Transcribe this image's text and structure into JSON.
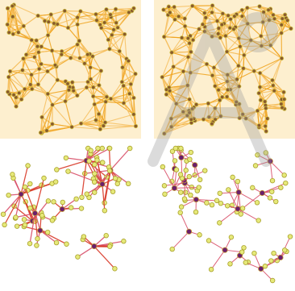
{
  "figure": {
    "panels": [
      {
        "id": "top-left",
        "style": "dense-mesh",
        "seed": 11,
        "nodes": 130,
        "k": 7
      },
      {
        "id": "top-right",
        "style": "clustered-mesh",
        "seed": 23,
        "nodes": 150,
        "k": 7
      },
      {
        "id": "bottom-left",
        "style": "hub-clusters",
        "seed": 37
      },
      {
        "id": "bottom-right",
        "style": "sparse-stars",
        "seed": 53
      }
    ],
    "colors": {
      "background": "#ffffff",
      "mesh_fill": "#f7c66b",
      "mesh_edge": "#f0a31c",
      "mesh_edge_light": "#f6c060",
      "node_fill": "#8a5a2b",
      "node_ring": "#d2c34a",
      "tree_edge": "#d9506a",
      "tree_edge_strong": "#d93a2a",
      "leaf_fill": "#e6e97a",
      "leaf_ring": "#a8a12a",
      "hub_fill": "#6b1f6b",
      "hub_ring": "#c8a03a"
    }
  },
  "watermark": {
    "present": true,
    "color": "#9a9a9a",
    "icon": "arrow-watermark-icon"
  }
}
